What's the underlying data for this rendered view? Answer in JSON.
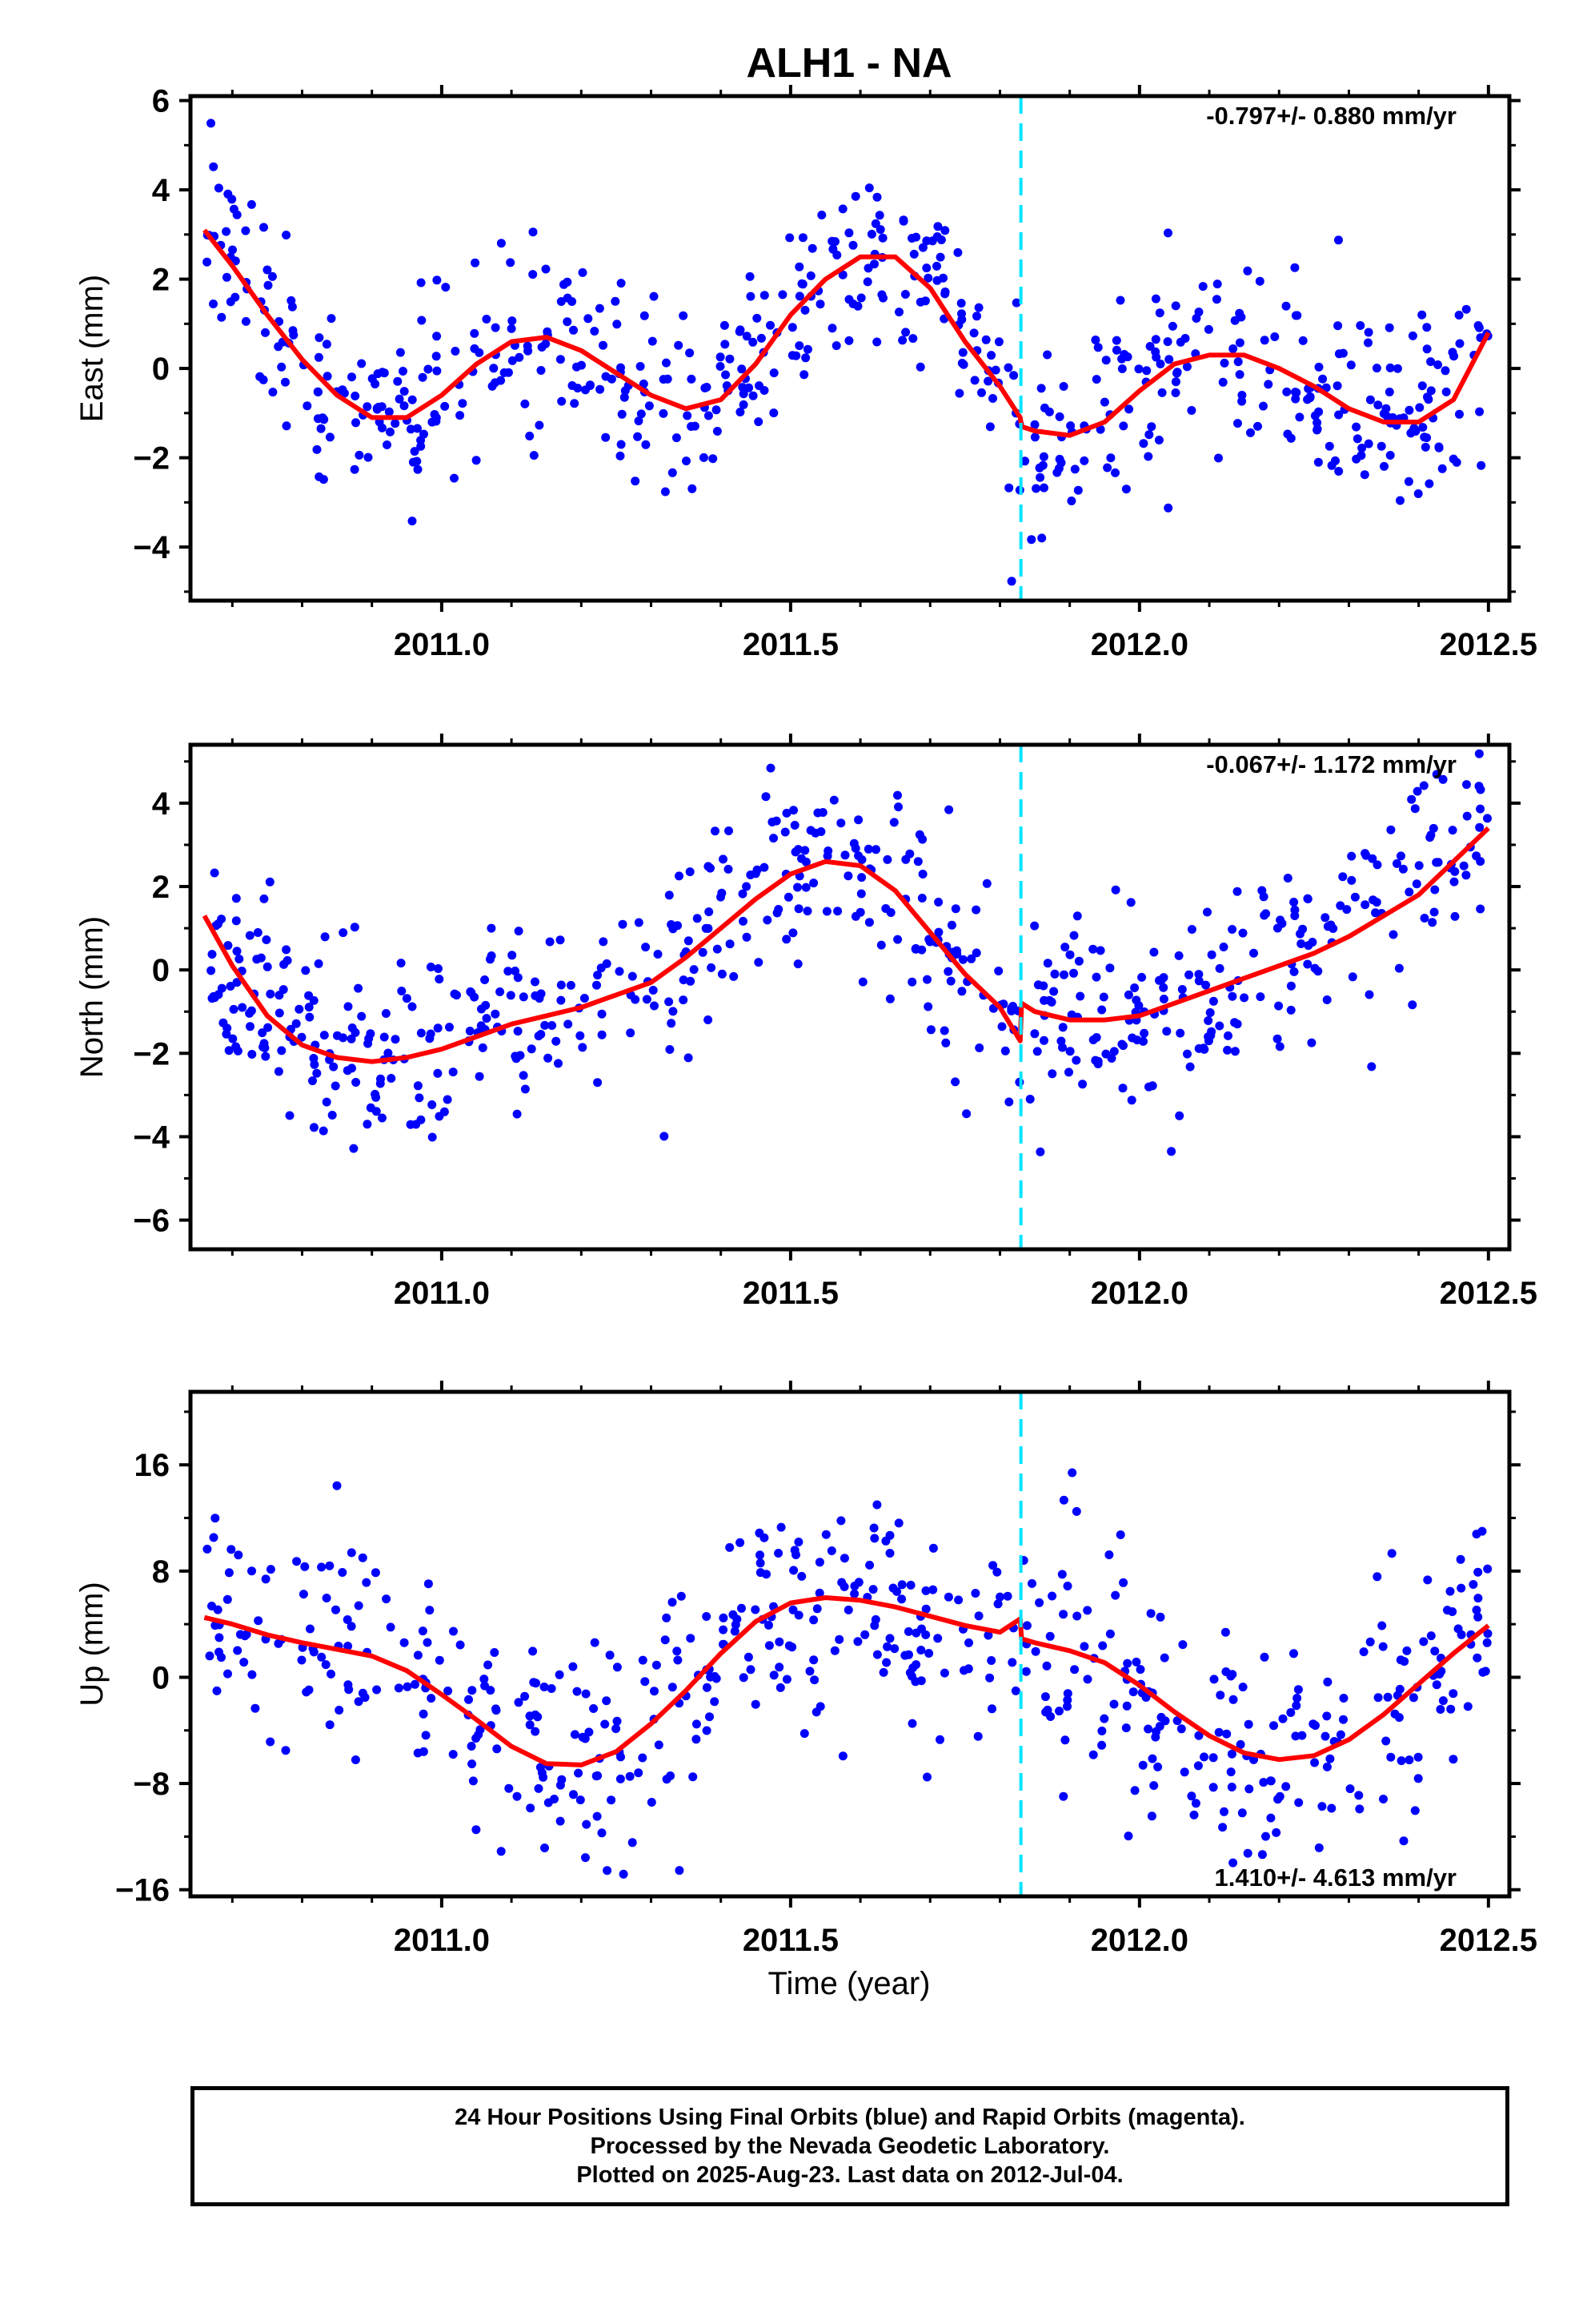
{
  "figure": {
    "title": "ALH1 - NA",
    "xlabel": "Time (year)",
    "footer": [
      "24 Hour Positions Using Final Orbits (blue) and Rapid Orbits (magenta).",
      "Processed by the Nevada Geodetic Laboratory.",
      "Plotted on 2025-Aug-23. Last data on 2012-Jul-04."
    ],
    "colors": {
      "points": "#0000ff",
      "fit": "#ff0000",
      "break_line": "#00e5ff",
      "frame": "#000000"
    }
  },
  "chart_data": [
    {
      "type": "scatter",
      "component": "East",
      "ylabel": "East (mm)",
      "rate_label": "-0.797+/- 0.880 mm/yr",
      "xlim": [
        2010.64,
        2012.53
      ],
      "ylim": [
        -5.2,
        6.1
      ],
      "yticks": [
        -4,
        -2,
        0,
        2,
        4,
        6
      ],
      "yminor": [
        -5,
        -3,
        -1,
        1,
        3,
        5
      ],
      "xticks": [
        2011.0,
        2011.5,
        2012.0,
        2012.5
      ],
      "xtick_labels": [
        "2011.0",
        "2011.5",
        "2012.0",
        "2012.5"
      ],
      "break_x": 2011.83,
      "fit": {
        "x": [
          2010.66,
          2010.7,
          2010.75,
          2010.8,
          2010.85,
          2010.9,
          2010.95,
          2011.0,
          2011.05,
          2011.1,
          2011.15,
          2011.2,
          2011.25,
          2011.3,
          2011.35,
          2011.4,
          2011.45,
          2011.5,
          2011.55,
          2011.6,
          2011.65,
          2011.7,
          2011.75,
          2011.8,
          2011.829,
          2011.831,
          2011.85,
          2011.9,
          2011.95,
          2012.0,
          2012.05,
          2012.1,
          2012.15,
          2012.2,
          2012.25,
          2012.3,
          2012.35,
          2012.4,
          2012.45,
          2012.5
        ],
        "y": [
          3.1,
          2.3,
          1.2,
          0.2,
          -0.6,
          -1.1,
          -1.1,
          -0.6,
          0.1,
          0.6,
          0.7,
          0.4,
          -0.1,
          -0.6,
          -0.9,
          -0.7,
          0.1,
          1.2,
          2.0,
          2.5,
          2.5,
          1.8,
          0.6,
          -0.4,
          -1.1,
          -1.3,
          -1.4,
          -1.5,
          -1.2,
          -0.5,
          0.1,
          0.3,
          0.3,
          0.0,
          -0.4,
          -0.9,
          -1.2,
          -1.2,
          -0.7,
          0.8
        ]
      },
      "scatter_seed": 11,
      "scatter_count": 610,
      "scatter_sigma": 1.05
    },
    {
      "type": "scatter",
      "component": "North",
      "ylabel": "North (mm)",
      "rate_label": "-0.067+/- 1.172 mm/yr",
      "xlim": [
        2010.64,
        2012.53
      ],
      "ylim": [
        -6.7,
        5.4
      ],
      "yticks": [
        -6,
        -4,
        -2,
        0,
        2,
        4
      ],
      "yminor": [
        -5,
        -3,
        -1,
        1,
        3,
        5
      ],
      "xticks": [
        2011.0,
        2011.5,
        2012.0,
        2012.5
      ],
      "xtick_labels": [
        "2011.0",
        "2011.5",
        "2012.0",
        "2012.5"
      ],
      "break_x": 2011.83,
      "fit": {
        "x": [
          2010.66,
          2010.7,
          2010.75,
          2010.8,
          2010.85,
          2010.9,
          2010.95,
          2011.0,
          2011.05,
          2011.1,
          2011.15,
          2011.2,
          2011.25,
          2011.3,
          2011.35,
          2011.4,
          2011.45,
          2011.5,
          2011.55,
          2011.6,
          2011.65,
          2011.7,
          2011.75,
          2011.8,
          2011.829,
          2011.831,
          2011.85,
          2011.9,
          2011.95,
          2012.0,
          2012.05,
          2012.1,
          2012.15,
          2012.2,
          2012.25,
          2012.3,
          2012.35,
          2012.4,
          2012.45,
          2012.5
        ],
        "y": [
          1.3,
          0.1,
          -1.1,
          -1.8,
          -2.1,
          -2.2,
          -2.1,
          -1.9,
          -1.6,
          -1.3,
          -1.1,
          -0.9,
          -0.6,
          -0.3,
          0.3,
          1.0,
          1.7,
          2.3,
          2.6,
          2.5,
          1.9,
          0.9,
          -0.1,
          -0.9,
          -1.7,
          -0.8,
          -1.0,
          -1.2,
          -1.2,
          -1.1,
          -0.8,
          -0.5,
          -0.2,
          0.1,
          0.4,
          0.8,
          1.3,
          1.8,
          2.6,
          3.4
        ]
      },
      "scatter_seed": 23,
      "scatter_count": 610,
      "scatter_sigma": 1.2
    },
    {
      "type": "scatter",
      "component": "Up",
      "ylabel": "Up (mm)",
      "rate_label": "1.410+/- 4.613 mm/yr",
      "xlim": [
        2010.64,
        2012.53
      ],
      "ylim": [
        -16.5,
        21.5
      ],
      "yticks": [
        -16,
        -8,
        0,
        8,
        16
      ],
      "yminor": [
        -12,
        -4,
        4,
        12,
        20
      ],
      "xticks": [
        2011.0,
        2011.5,
        2012.0,
        2012.5
      ],
      "xtick_labels": [
        "2011.0",
        "2011.5",
        "2012.0",
        "2012.5"
      ],
      "break_x": 2011.83,
      "fit": {
        "x": [
          2010.66,
          2010.7,
          2010.75,
          2010.8,
          2010.85,
          2010.9,
          2010.95,
          2011.0,
          2011.05,
          2011.1,
          2011.15,
          2011.2,
          2011.25,
          2011.3,
          2011.35,
          2011.4,
          2011.45,
          2011.5,
          2011.55,
          2011.6,
          2011.65,
          2011.7,
          2011.75,
          2011.8,
          2011.829,
          2011.831,
          2011.85,
          2011.9,
          2011.95,
          2012.0,
          2012.05,
          2012.1,
          2012.15,
          2012.2,
          2012.25,
          2012.3,
          2012.35,
          2012.4,
          2012.45,
          2012.5
        ],
        "y": [
          4.5,
          4.0,
          3.2,
          2.6,
          2.1,
          1.6,
          0.5,
          -1.3,
          -3.2,
          -5.2,
          -6.5,
          -6.6,
          -5.6,
          -3.5,
          -1.0,
          1.8,
          4.2,
          5.6,
          6.0,
          5.8,
          5.3,
          4.6,
          3.9,
          3.4,
          4.4,
          2.9,
          2.6,
          2.0,
          1.1,
          -0.6,
          -2.6,
          -4.4,
          -5.7,
          -6.2,
          -5.9,
          -4.7,
          -2.8,
          -0.5,
          1.8,
          3.9
        ]
      },
      "scatter_seed": 37,
      "scatter_count": 560,
      "scatter_sigma": 4.4
    }
  ]
}
